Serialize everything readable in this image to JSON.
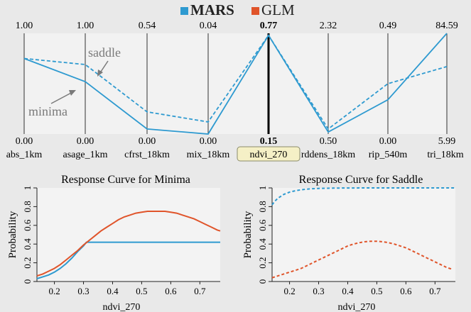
{
  "legend": {
    "items": [
      {
        "label": "MARS",
        "color": "#2e9ad0"
      },
      {
        "label": "GLM",
        "color": "#e0542a"
      }
    ]
  },
  "parallel": {
    "axes": [
      {
        "name": "abs_1km",
        "top": "1.00",
        "bottom": "0.00"
      },
      {
        "name": "asage_1km",
        "top": "1.00",
        "bottom": "0.00"
      },
      {
        "name": "cfrst_18km",
        "top": "0.54",
        "bottom": "0.00"
      },
      {
        "name": "mix_18km",
        "top": "0.04",
        "bottom": "0.00"
      },
      {
        "name": "ndvi_270",
        "top": "0.77",
        "bottom": "0.15"
      },
      {
        "name": "rddens_18km",
        "top": "2.32",
        "bottom": "0.50"
      },
      {
        "name": "rip_540m",
        "top": "0.49",
        "bottom": "0.00"
      },
      {
        "name": "tri_18km",
        "top": "84.59",
        "bottom": "5.99"
      }
    ],
    "selected_axis": "ndvi_270",
    "minima_fraction": [
      0.75,
      0.52,
      0.05,
      0.0,
      0.98,
      0.02,
      0.34,
      1.0
    ],
    "saddle_fraction": [
      0.75,
      0.69,
      0.22,
      0.12,
      0.98,
      0.05,
      0.5,
      0.67
    ],
    "annotations": {
      "saddle": "saddle",
      "minima": "minima"
    }
  },
  "chart_data": [
    {
      "type": "line",
      "title": "Response Curve  for Minima",
      "xlabel": "ndvi_270",
      "ylabel": "Probability",
      "xlim": [
        0.14,
        0.77
      ],
      "ylim": [
        0,
        1
      ],
      "xticks": [
        "0.2",
        "0.3",
        "0.4",
        "0.5",
        "0.6",
        "0.7"
      ],
      "yticks": [
        "0",
        "0.2",
        "0.4",
        "0.6",
        "0.8",
        "1"
      ],
      "series": [
        {
          "line": "solid",
          "color": "#2e9ad0",
          "x": [
            0.14,
            0.16,
            0.18,
            0.2,
            0.22,
            0.24,
            0.26,
            0.28,
            0.3,
            0.31,
            0.32,
            0.4,
            0.5,
            0.6,
            0.7,
            0.77
          ],
          "y": [
            0.03,
            0.05,
            0.07,
            0.1,
            0.14,
            0.19,
            0.25,
            0.32,
            0.38,
            0.42,
            0.42,
            0.42,
            0.42,
            0.42,
            0.42,
            0.42
          ]
        },
        {
          "line": "solid",
          "color": "#e0542a",
          "x": [
            0.14,
            0.16,
            0.18,
            0.2,
            0.22,
            0.24,
            0.26,
            0.28,
            0.3,
            0.32,
            0.34,
            0.36,
            0.38,
            0.4,
            0.42,
            0.44,
            0.46,
            0.48,
            0.5,
            0.52,
            0.54,
            0.56,
            0.58,
            0.6,
            0.62,
            0.64,
            0.66,
            0.68,
            0.7,
            0.72,
            0.74,
            0.76,
            0.77
          ],
          "y": [
            0.06,
            0.08,
            0.11,
            0.14,
            0.18,
            0.23,
            0.28,
            0.33,
            0.39,
            0.44,
            0.49,
            0.54,
            0.58,
            0.62,
            0.66,
            0.69,
            0.71,
            0.73,
            0.74,
            0.75,
            0.75,
            0.75,
            0.75,
            0.74,
            0.73,
            0.71,
            0.69,
            0.67,
            0.64,
            0.61,
            0.58,
            0.55,
            0.54
          ]
        }
      ]
    },
    {
      "type": "line",
      "title": "Response Curve  for Saddle",
      "xlabel": "ndvi_270",
      "ylabel": "Probability",
      "xlim": [
        0.14,
        0.77
      ],
      "ylim": [
        0,
        1
      ],
      "xticks": [
        "0.2",
        "0.3",
        "0.4",
        "0.5",
        "0.6",
        "0.7"
      ],
      "yticks": [
        "0",
        "0.2",
        "0.4",
        "0.6",
        "0.8",
        "1"
      ],
      "series": [
        {
          "line": "dashed",
          "color": "#2e9ad0",
          "x": [
            0.14,
            0.15,
            0.16,
            0.17,
            0.18,
            0.2,
            0.22,
            0.24,
            0.26,
            0.28,
            0.3,
            0.35,
            0.4,
            0.5,
            0.6,
            0.7,
            0.77
          ],
          "y": [
            0.82,
            0.86,
            0.89,
            0.91,
            0.93,
            0.955,
            0.97,
            0.98,
            0.987,
            0.992,
            0.995,
            0.998,
            0.999,
            1.0,
            1.0,
            1.0,
            1.0
          ]
        },
        {
          "line": "dashed",
          "color": "#e0542a",
          "x": [
            0.14,
            0.16,
            0.18,
            0.2,
            0.22,
            0.24,
            0.26,
            0.28,
            0.3,
            0.32,
            0.34,
            0.36,
            0.38,
            0.4,
            0.42,
            0.44,
            0.46,
            0.48,
            0.5,
            0.52,
            0.54,
            0.56,
            0.58,
            0.6,
            0.62,
            0.64,
            0.66,
            0.68,
            0.7,
            0.72,
            0.74,
            0.76
          ],
          "y": [
            0.04,
            0.06,
            0.08,
            0.1,
            0.12,
            0.14,
            0.17,
            0.2,
            0.23,
            0.26,
            0.29,
            0.32,
            0.35,
            0.38,
            0.4,
            0.415,
            0.425,
            0.43,
            0.43,
            0.425,
            0.415,
            0.4,
            0.38,
            0.36,
            0.33,
            0.3,
            0.27,
            0.24,
            0.21,
            0.18,
            0.15,
            0.13
          ]
        }
      ]
    }
  ]
}
